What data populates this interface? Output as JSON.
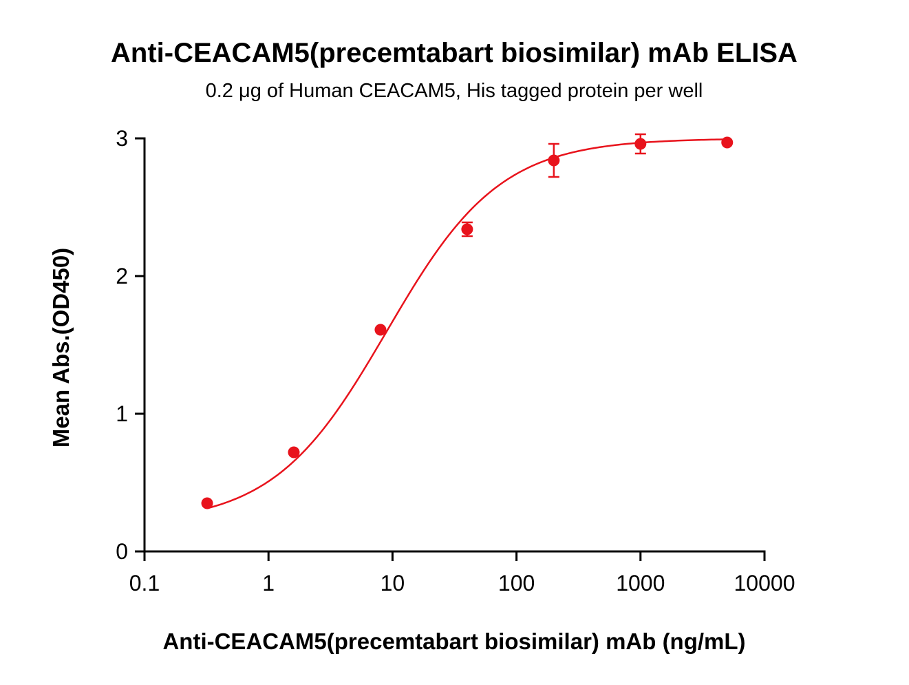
{
  "chart_data": {
    "type": "scatter",
    "title": "Anti-CEACAM5(precemtabart biosimilar) mAb ELISA",
    "subtitle": "0.2 μg of Human CEACAM5, His tagged protein per well",
    "xlabel": "Anti-CEACAM5(precemtabart biosimilar) mAb (ng/mL)",
    "ylabel": "Mean Abs.(OD450)",
    "x_scale": "log",
    "xlim": [
      0.1,
      10000
    ],
    "ylim": [
      0,
      3
    ],
    "x_ticks": [
      0.1,
      1,
      10,
      100,
      1000,
      10000
    ],
    "x_tick_labels": [
      "0.1",
      "1",
      "10",
      "100",
      "1000",
      "10000"
    ],
    "y_ticks": [
      0,
      1,
      2,
      3
    ],
    "y_tick_labels": [
      "0",
      "1",
      "2",
      "3"
    ],
    "grid": false,
    "legend": "none",
    "series": [
      {
        "color": "#e8131c",
        "points": [
          {
            "x": 0.32,
            "y": 0.35,
            "err": 0.0
          },
          {
            "x": 1.6,
            "y": 0.72,
            "err": 0.0
          },
          {
            "x": 8,
            "y": 1.61,
            "err": 0.0
          },
          {
            "x": 40,
            "y": 2.34,
            "err": 0.05
          },
          {
            "x": 200,
            "y": 2.84,
            "err": 0.12
          },
          {
            "x": 1000,
            "y": 2.96,
            "err": 0.07
          },
          {
            "x": 5000,
            "y": 2.97,
            "err": 0.0
          }
        ],
        "fit": {
          "model": "4PL",
          "bottom": 0.2,
          "top": 3.0,
          "ec50": 9.0,
          "hill": 0.95
        }
      }
    ]
  }
}
